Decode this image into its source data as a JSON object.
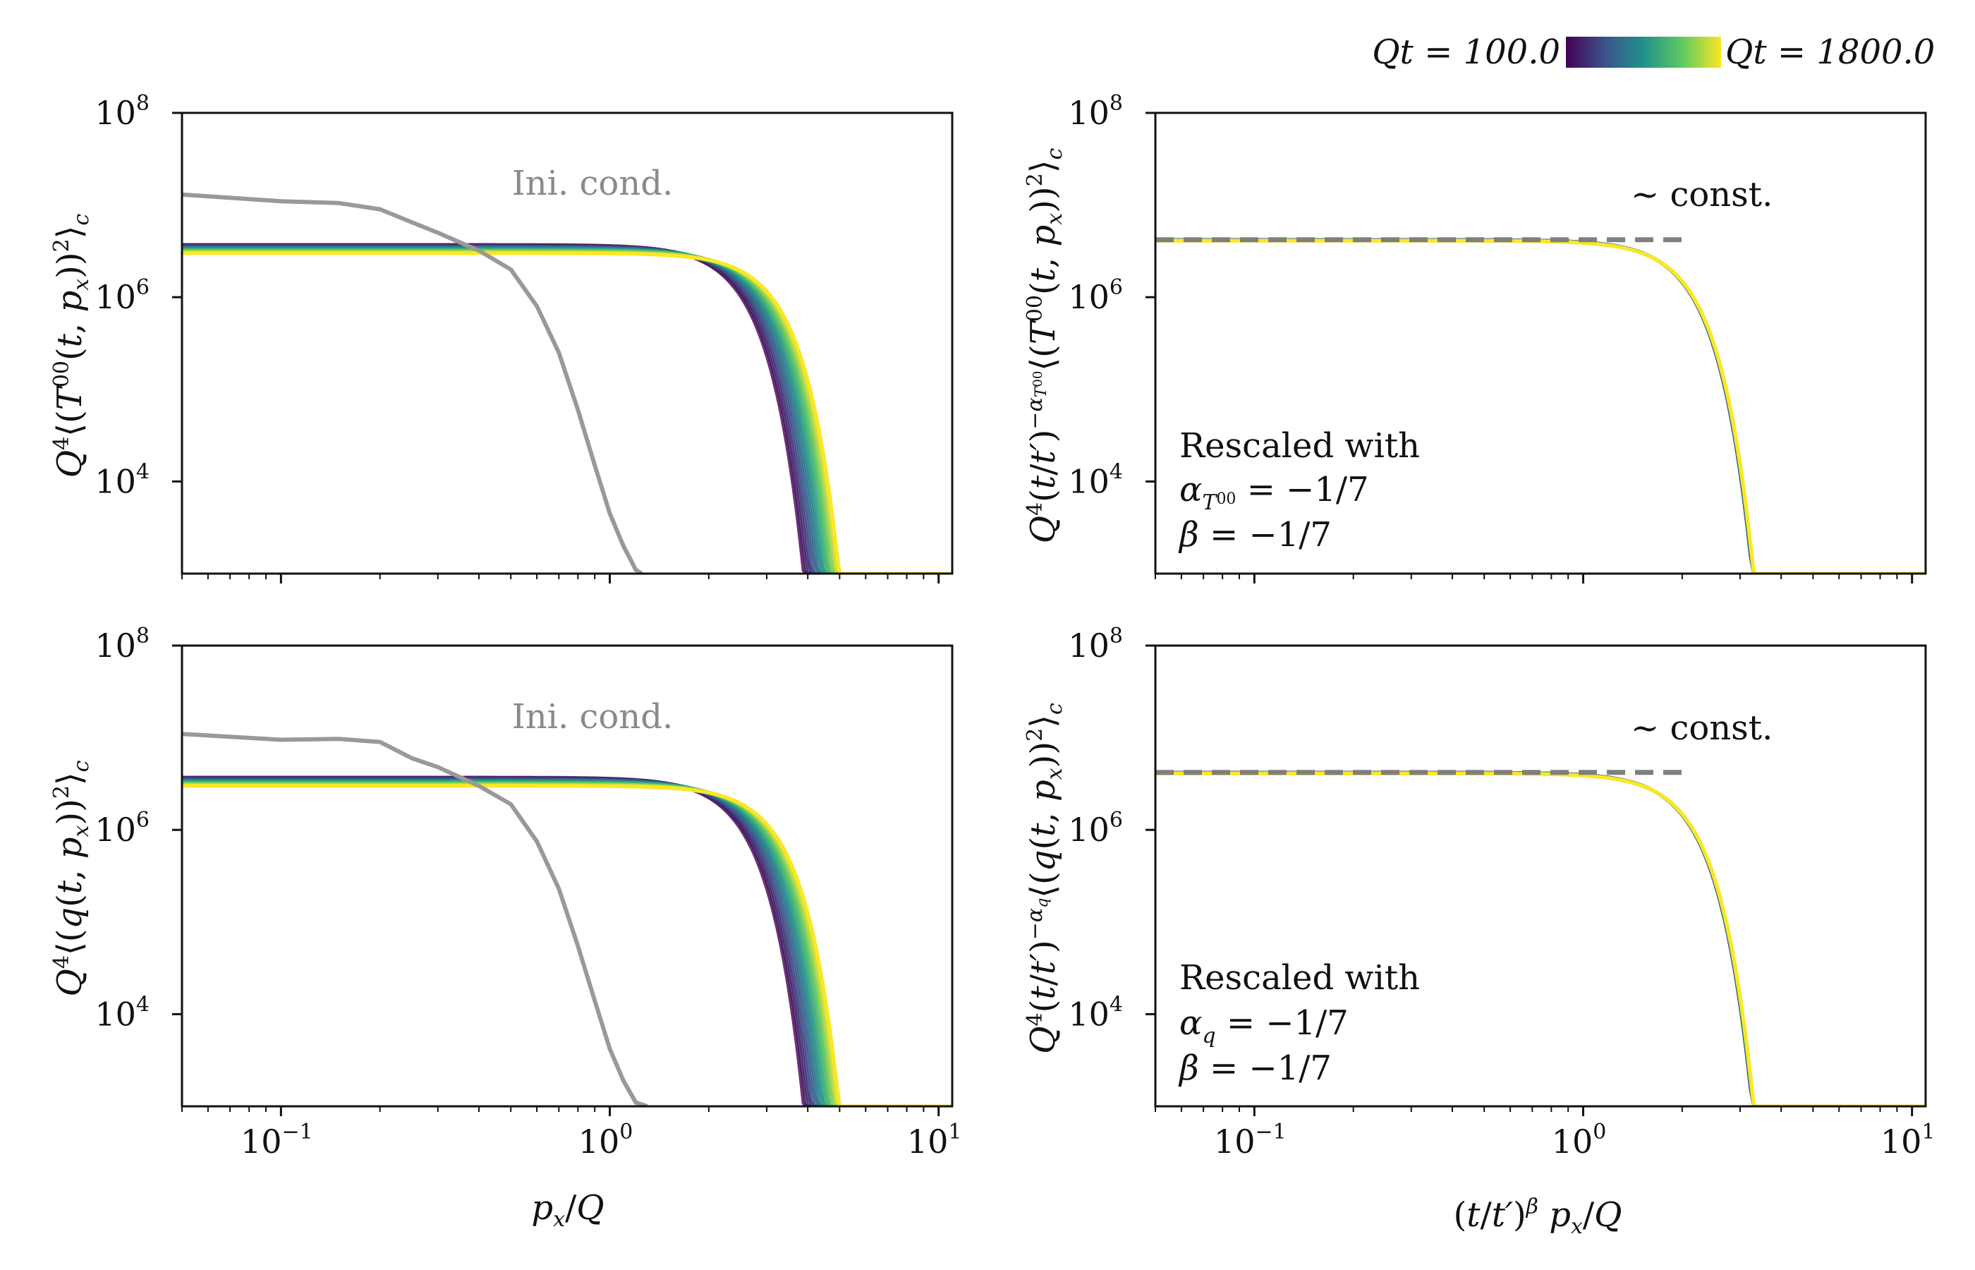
{
  "colorbar": {
    "left_label": "Qt = 100.0",
    "right_label": "Qt = 1800.0",
    "colormap": [
      "#440154",
      "#3b528b",
      "#21918c",
      "#5ec962",
      "#fde725"
    ]
  },
  "colors": {
    "initial": "#999999",
    "reference": "#7f7f7f",
    "ink": "#111111"
  },
  "chart_data": [
    {
      "id": "T00-raw",
      "type": "line",
      "scale": {
        "x": "log",
        "y": "log"
      },
      "xlim": [
        0.05,
        11
      ],
      "ylim": [
        1000,
        100000000
      ],
      "ylabel": "Q^4⟨(T^00(t, p_x))^2⟩_c",
      "xlabel": "",
      "annotation": "Ini. cond.",
      "initial_condition": {
        "x": [
          0.05,
          0.1,
          0.15,
          0.2,
          0.25,
          0.3,
          0.4,
          0.5,
          0.6,
          0.7,
          0.8,
          0.9,
          1.0,
          1.1,
          1.2,
          1.25
        ],
        "y": [
          13000000,
          11000000,
          10500000,
          9000000,
          6500000,
          5000000,
          3200000,
          2000000,
          800000,
          250000,
          60000,
          15000,
          4500,
          2000,
          1100,
          1000
        ]
      },
      "series": {
        "n": 18,
        "t_range": [
          100.0,
          1800.0
        ],
        "plateau_range": [
          3700000,
          3000000
        ],
        "rolloff_range": [
          3.8,
          4.9
        ]
      }
    },
    {
      "id": "q-raw",
      "type": "line",
      "scale": {
        "x": "log",
        "y": "log"
      },
      "xlim": [
        0.05,
        11
      ],
      "ylim": [
        1000,
        100000000
      ],
      "ylabel": "Q^4⟨(q(t, p_x))^2⟩_c",
      "xlabel": "p_x/Q",
      "annotation": "Ini. cond.",
      "xticks": [
        "10^-1",
        "10^0",
        "10^1"
      ],
      "initial_condition": {
        "x": [
          0.05,
          0.1,
          0.15,
          0.2,
          0.25,
          0.3,
          0.4,
          0.5,
          0.6,
          0.7,
          0.8,
          0.9,
          1.0,
          1.1,
          1.2,
          1.3
        ],
        "y": [
          11000000,
          9500000,
          9700000,
          9000000,
          6000000,
          4800000,
          3000000,
          1900000,
          750000,
          230000,
          55000,
          14000,
          4200,
          1900,
          1100,
          1000
        ]
      },
      "series": {
        "n": 18,
        "t_range": [
          100.0,
          1800.0
        ],
        "plateau_range": [
          3700000,
          3000000
        ],
        "rolloff_range": [
          3.8,
          4.9
        ]
      }
    },
    {
      "id": "T00-rescaled",
      "type": "line",
      "scale": {
        "x": "log",
        "y": "log"
      },
      "xlim": [
        0.05,
        11
      ],
      "ylim": [
        1000,
        100000000
      ],
      "ylabel": "Q^4(t/t')^(-α_T00)⟨(T^00(t, p_x))^2⟩_c",
      "xlabel": "",
      "annotation": "~ const.",
      "reference_line": {
        "x": [
          0.05,
          2.0
        ],
        "y": 4200000
      },
      "text_box": [
        "Rescaled with",
        "α_T00 = -1/7",
        "β = -1/7"
      ],
      "series": {
        "n": 18,
        "t_range": [
          100.0,
          1800.0
        ],
        "plateau": 4100000,
        "rolloff": 3.2
      }
    },
    {
      "id": "q-rescaled",
      "type": "line",
      "scale": {
        "x": "log",
        "y": "log"
      },
      "xlim": [
        0.05,
        11
      ],
      "ylim": [
        1000,
        100000000
      ],
      "ylabel": "Q^4(t/t')^(-α_q)⟨(q(t, p_x))^2⟩_c",
      "xlabel": "(t/t')^β p_x/Q",
      "annotation": "~ const.",
      "xticks": [
        "10^-1",
        "10^0",
        "10^1"
      ],
      "reference_line": {
        "x": [
          0.05,
          2.0
        ],
        "y": 4200000
      },
      "text_box": [
        "Rescaled with",
        "α_q = -1/7",
        "β = -1/7"
      ],
      "series": {
        "n": 18,
        "t_range": [
          100.0,
          1800.0
        ],
        "plateau": 4100000,
        "rolloff": 3.2
      }
    }
  ]
}
